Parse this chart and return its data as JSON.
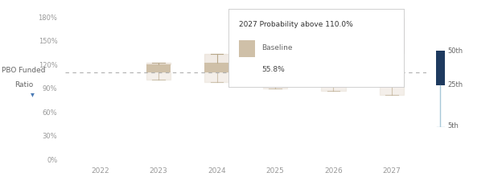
{
  "years": [
    2022,
    2023,
    2024,
    2025,
    2026,
    2027
  ],
  "box_data": {
    "2023": {
      "q75": 1.2,
      "q25": 1.1,
      "whisker_high": 1.225,
      "whisker_low": 1.01
    },
    "2024": {
      "q75": 1.225,
      "q25": 1.1,
      "whisker_high": 1.335,
      "whisker_low": 0.975
    },
    "2025": {
      "q75": 1.265,
      "q25": 1.085,
      "whisker_high": 1.5,
      "whisker_low": 0.9
    },
    "2026": {
      "q75": 1.295,
      "q25": 1.075,
      "whisker_high": 1.6,
      "whisker_low": 0.87
    },
    "2027": {
      "q75": 1.35,
      "q25": 1.075,
      "whisker_high": 1.78,
      "whisker_low": 0.82
    }
  },
  "box_color": "#cfc0a8",
  "box_color_light": "#e4d9cc",
  "whisker_color": "#b8a88a",
  "target_line": 1.1,
  "target_line_color": "#b0b0b0",
  "navy_color": "#1e3a5f",
  "light_blue_color": "#a8c8d8",
  "tooltip_title": "2027 Probability above 110.0%",
  "tooltip_baseline_label": "Baseline",
  "tooltip_baseline_value": "55.8%",
  "tooltip_swatch_color": "#cfc0a8",
  "ylabel_line1": "PBO Funded",
  "ylabel_line2": "Ratio",
  "ytick_labels": [
    "0%",
    "30%",
    "60%",
    "90%",
    "120%",
    "150%",
    "180%"
  ],
  "ytick_vals": [
    0.0,
    0.3,
    0.6,
    0.9,
    1.2,
    1.5,
    1.8
  ],
  "ylim": [
    0.0,
    1.88
  ],
  "xlim": [
    2021.4,
    2027.6
  ],
  "bg_color": "#ffffff",
  "legend_50th": "50th",
  "legend_25th": "25th",
  "legend_5th": "5th",
  "box_width": 0.42
}
